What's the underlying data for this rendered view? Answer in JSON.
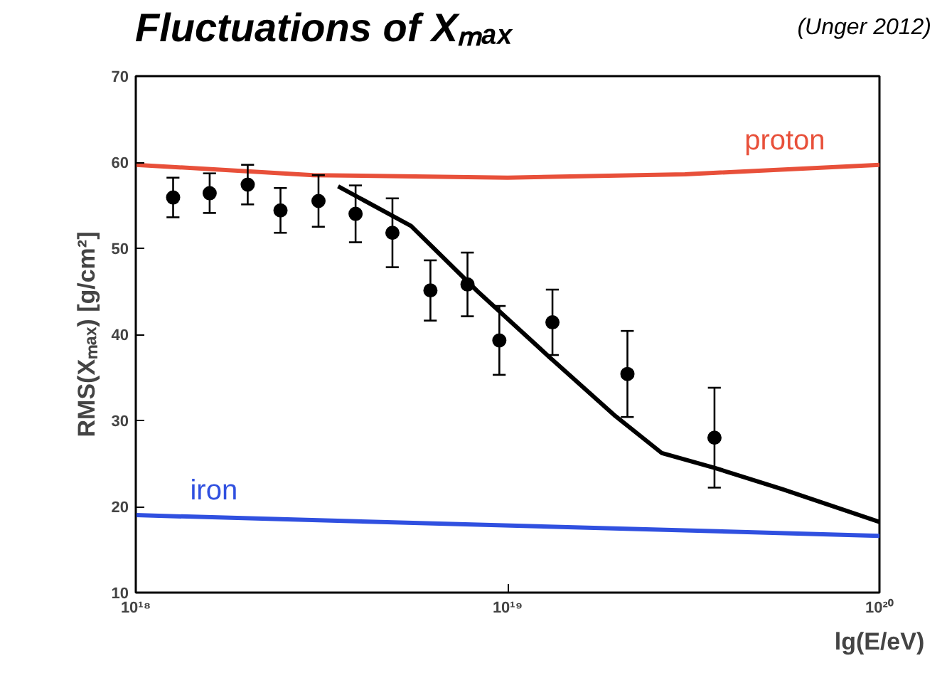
{
  "chart_data": {
    "type": "scatter",
    "title": "Fluctuations of Xₘₐₓ",
    "annotations": [
      "(Unger 2012)"
    ],
    "xlabel": "lg(E/eV)",
    "ylabel": "RMS(Xₘₐₓ) [g/cm²]",
    "log": "x",
    "xlim": [
      1e+18,
      1e+20
    ],
    "ylim": [
      10,
      70
    ],
    "xticks": [
      {
        "value": 1e+18,
        "label": "10¹⁸"
      },
      {
        "value": 1e+19,
        "label": "10¹⁹"
      },
      {
        "value": 1e+20,
        "label": "10²⁰"
      }
    ],
    "yticks": [
      10,
      20,
      30,
      40,
      50,
      60,
      70
    ],
    "grid": false,
    "legend": false,
    "series": [
      {
        "name": "proton",
        "type": "line",
        "color": "#e8503a",
        "x": [
          1e+18,
          3e+18,
          1e+19,
          3e+19,
          1e+20
        ],
        "values": [
          59.7,
          58.5,
          58.2,
          58.6,
          59.7
        ]
      },
      {
        "name": "iron",
        "type": "line",
        "color": "#3050e0",
        "x": [
          1e+18,
          1e+20
        ],
        "values": [
          19.0,
          16.6
        ]
      },
      {
        "type": "line",
        "color": "#000000",
        "x": [
          3.5e+18,
          5.5e+18,
          8.3e+18,
          1.3e+19,
          1.95e+19,
          2.6e+19,
          3.6e+19,
          5.5e+19,
          1e+20
        ],
        "values": [
          57.2,
          52.6,
          45,
          37.3,
          30.5,
          26.2,
          24.5,
          22,
          18.2
        ]
      },
      {
        "marker": "circle",
        "color": "#000000",
        "x": [
          1.26e+18,
          1.58e+18,
          2e+18,
          2.45e+18,
          3.1e+18,
          3.9e+18,
          4.9e+18,
          6.2e+18,
          7.8e+18,
          9.5e+18,
          1.32e+19,
          2.1e+19,
          3.6e+19
        ],
        "values": [
          55.9,
          56.4,
          57.4,
          54.4,
          55.5,
          54.0,
          51.8,
          45.1,
          45.8,
          39.3,
          41.4,
          35.4,
          28.0
        ],
        "errors": [
          2.3,
          2.3,
          2.3,
          2.6,
          3.0,
          3.3,
          4.0,
          3.5,
          3.7,
          4.0,
          3.8,
          5.0,
          5.8
        ]
      }
    ]
  }
}
